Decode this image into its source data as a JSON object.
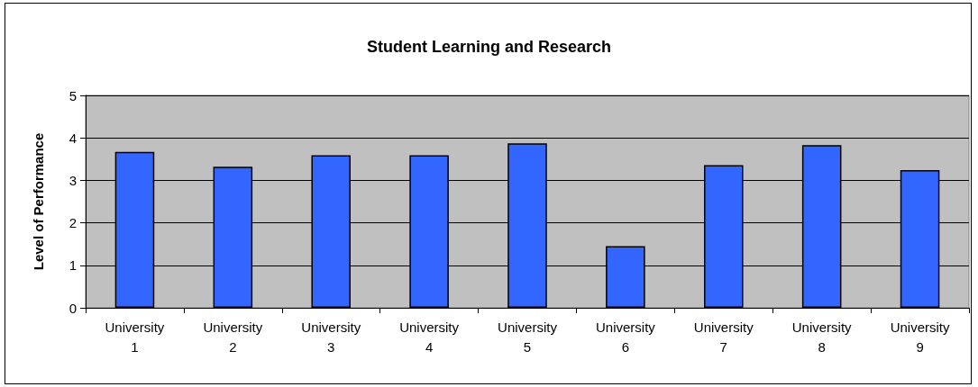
{
  "chart_data": {
    "type": "bar",
    "title": "Student Learning and Research",
    "ylabel": "Level of Performance",
    "categories": [
      "University 1",
      "University 2",
      "University 3",
      "University 4",
      "University 5",
      "University 6",
      "University 7",
      "University 8",
      "University 9"
    ],
    "values": [
      3.67,
      3.32,
      3.59,
      3.59,
      3.87,
      1.45,
      3.36,
      3.83,
      3.24
    ],
    "color": "#3366ff",
    "ylim": [
      0,
      5
    ],
    "yticks": [
      0,
      1,
      2,
      3,
      4,
      5
    ],
    "grid": "y"
  }
}
